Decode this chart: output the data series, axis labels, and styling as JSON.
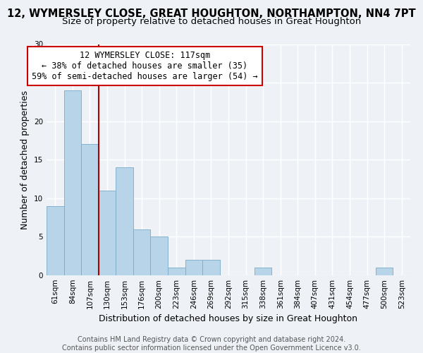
{
  "title": "12, WYMERSLEY CLOSE, GREAT HOUGHTON, NORTHAMPTON, NN4 7PT",
  "subtitle": "Size of property relative to detached houses in Great Houghton",
  "xlabel": "Distribution of detached houses by size in Great Houghton",
  "ylabel": "Number of detached properties",
  "categories": [
    "61sqm",
    "84sqm",
    "107sqm",
    "130sqm",
    "153sqm",
    "176sqm",
    "200sqm",
    "223sqm",
    "246sqm",
    "269sqm",
    "292sqm",
    "315sqm",
    "338sqm",
    "361sqm",
    "384sqm",
    "407sqm",
    "431sqm",
    "454sqm",
    "477sqm",
    "500sqm",
    "523sqm"
  ],
  "values": [
    9,
    24,
    17,
    11,
    14,
    6,
    5,
    1,
    2,
    2,
    0,
    0,
    1,
    0,
    0,
    0,
    0,
    0,
    0,
    1,
    0
  ],
  "bar_color": "#b8d4e8",
  "bar_edge_color": "#7aaac8",
  "property_line_color": "#aa0000",
  "annotation_text": "12 WYMERSLEY CLOSE: 117sqm\n← 38% of detached houses are smaller (35)\n59% of semi-detached houses are larger (54) →",
  "annotation_box_color": "#ffffff",
  "annotation_box_edge_color": "#cc0000",
  "ylim": [
    0,
    30
  ],
  "yticks": [
    0,
    5,
    10,
    15,
    20,
    25,
    30
  ],
  "footer_line1": "Contains HM Land Registry data © Crown copyright and database right 2024.",
  "footer_line2": "Contains public sector information licensed under the Open Government Licence v3.0.",
  "background_color": "#eef2f7",
  "grid_color": "#ffffff",
  "title_fontsize": 10.5,
  "subtitle_fontsize": 9.5,
  "axis_label_fontsize": 9,
  "tick_fontsize": 7.5,
  "annotation_fontsize": 8.5,
  "footer_fontsize": 7
}
